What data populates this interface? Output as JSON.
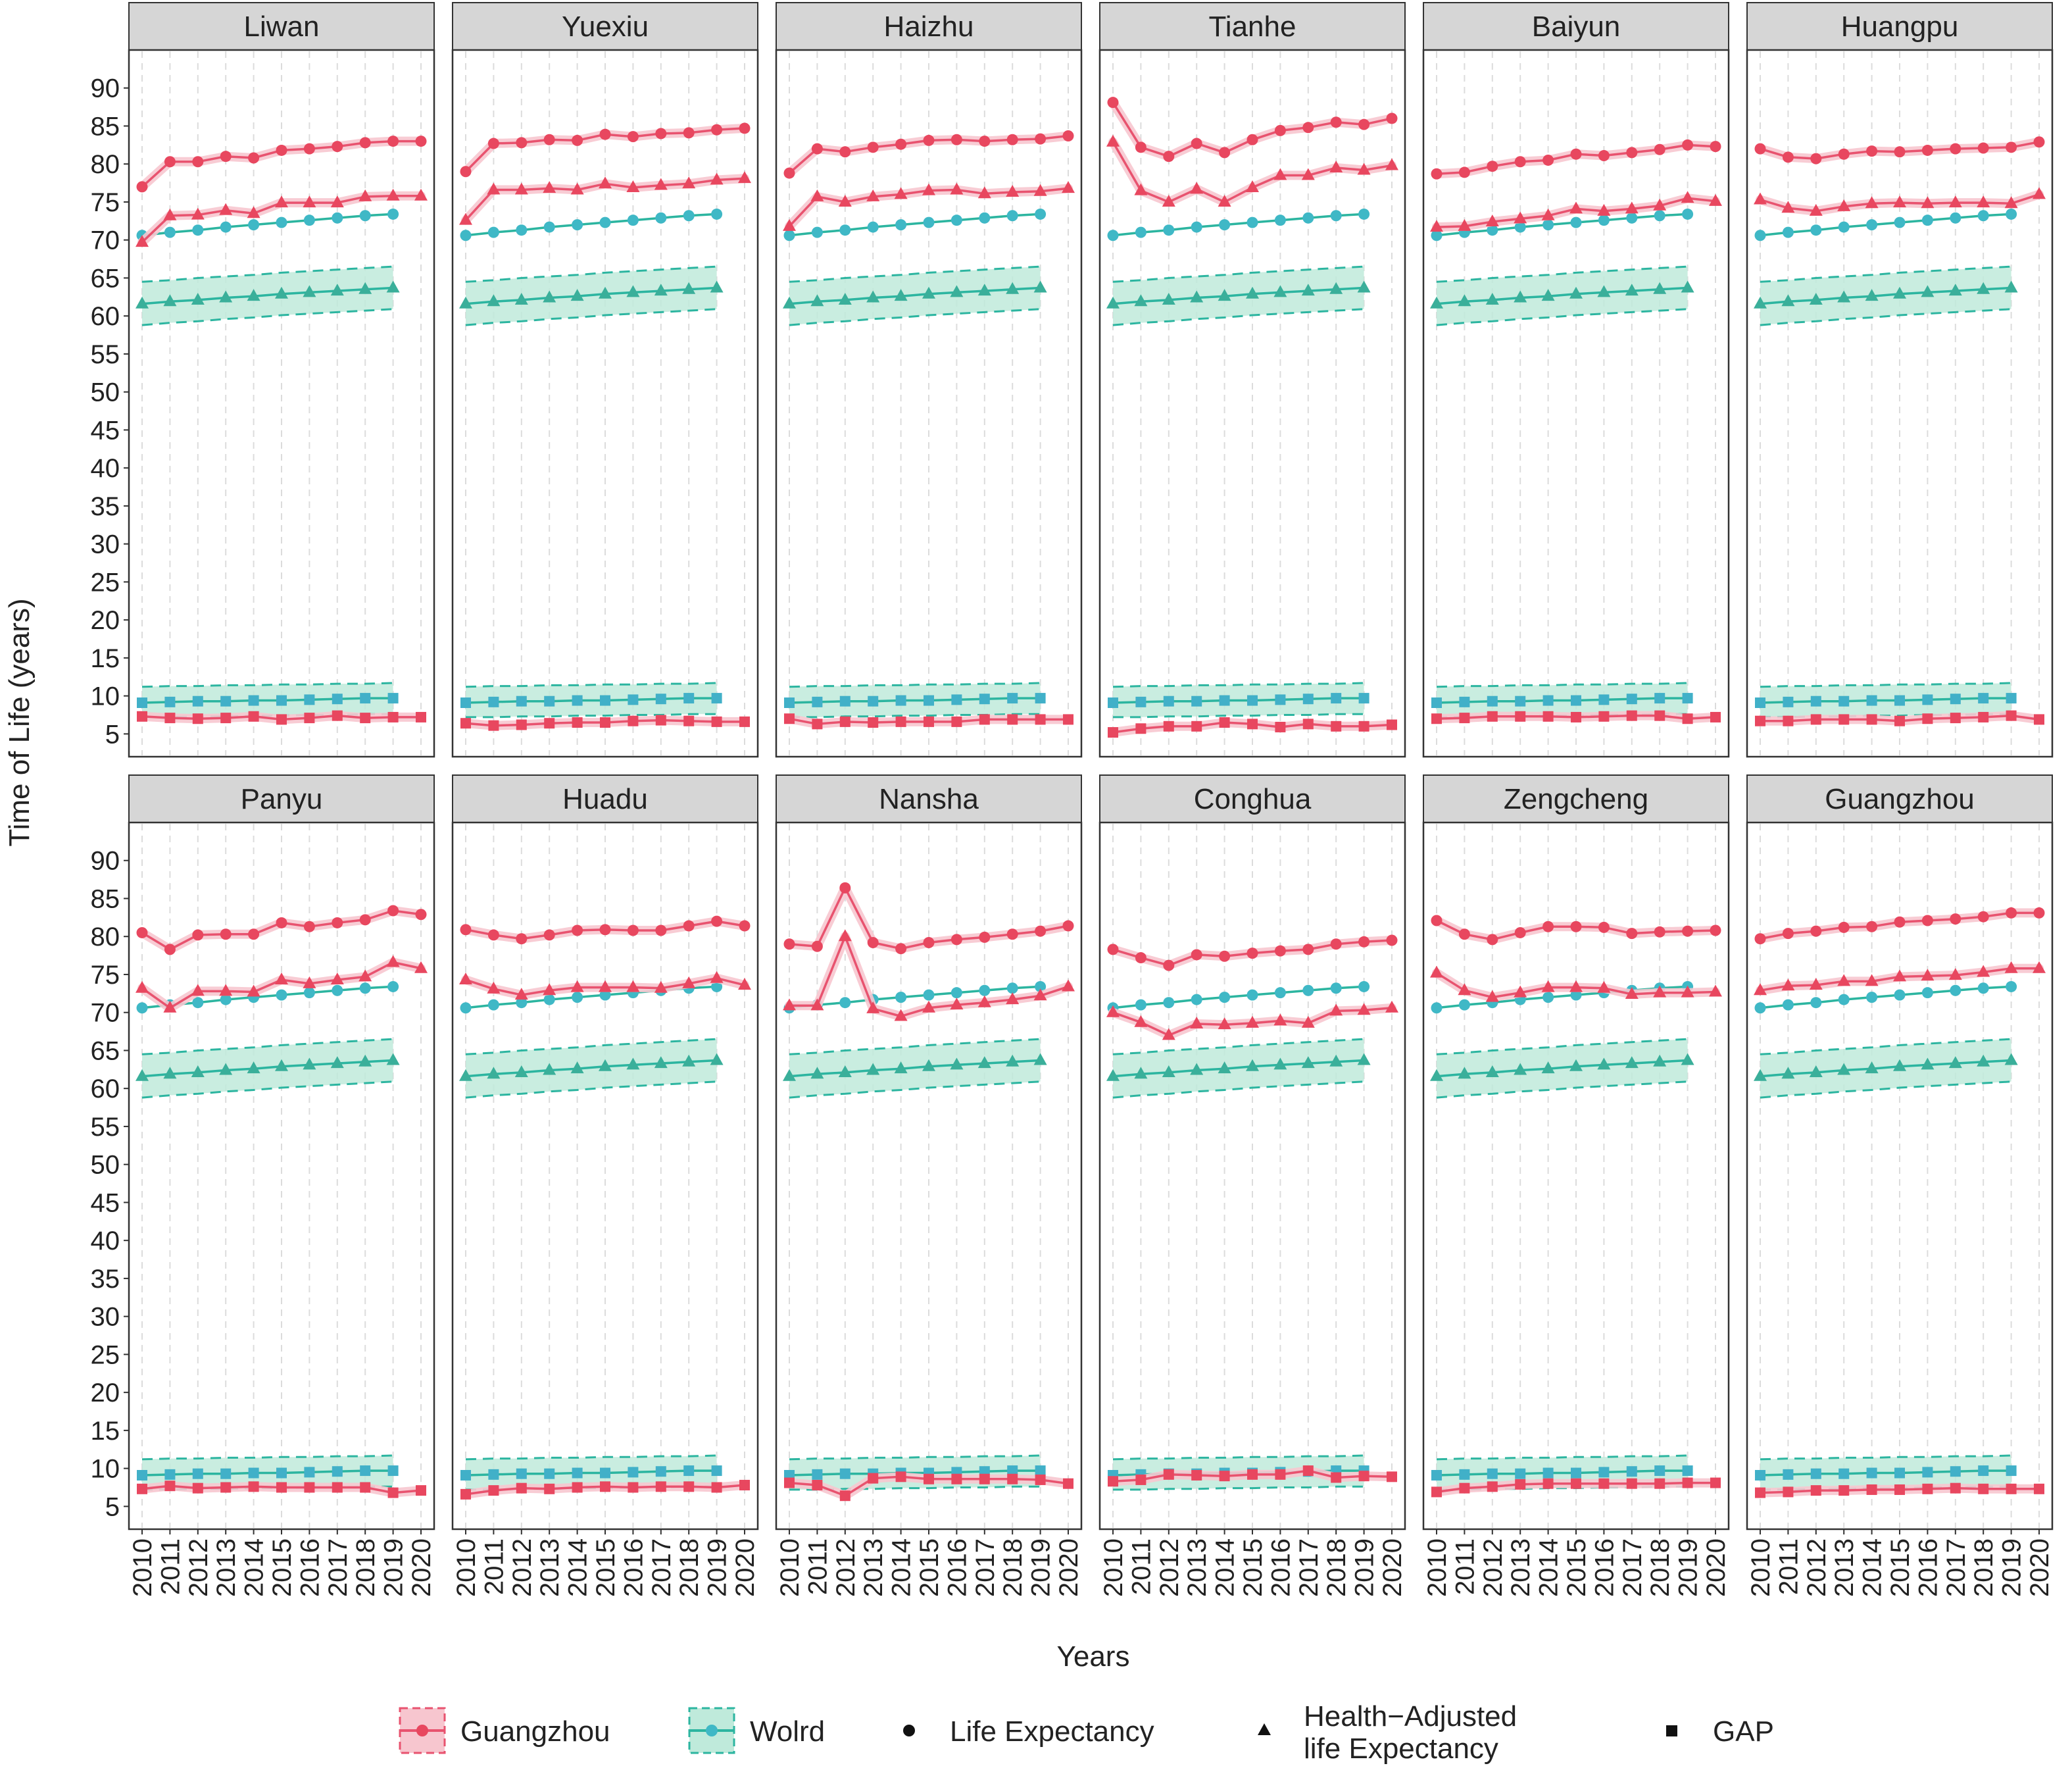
{
  "chart_data": {
    "type": "line",
    "title": "",
    "xlabel": "Years",
    "ylabel": "Time of Life (years)",
    "ylim": [
      2,
      95
    ],
    "yticks": [
      5,
      10,
      15,
      20,
      25,
      30,
      35,
      40,
      45,
      50,
      55,
      60,
      65,
      70,
      75,
      80,
      85,
      90
    ],
    "x": [
      2010,
      2011,
      2012,
      2013,
      2014,
      2015,
      2016,
      2017,
      2018,
      2019,
      2020
    ],
    "grid": true,
    "legend_position": "bottom",
    "legend": {
      "groups": [
        {
          "label": "Guangzhou",
          "color": "#e8536f"
        },
        {
          "label": "Wolrd",
          "color": "#2cb5a0"
        }
      ],
      "measures": [
        {
          "label": "Life Expectancy",
          "marker": "circle"
        },
        {
          "label": "Health−Adjusted life Expectancy",
          "lines": [
            "Health−Adjusted",
            "life Expectancy"
          ],
          "marker": "triangle"
        },
        {
          "label": "GAP",
          "marker": "square"
        }
      ]
    },
    "colors": {
      "guangzhou": "#e8536f",
      "guangzhou_marker": "#e8475f",
      "guangzhou_band": "#f7c6cf",
      "world": "#2cb5a0",
      "world_le_marker": "#3fb8c6",
      "world_hale_marker": "#3aaf9a",
      "world_gap_marker": "#41b0c8",
      "world_band": "#bfeadb"
    },
    "world": {
      "x": [
        2010,
        2011,
        2012,
        2013,
        2014,
        2015,
        2016,
        2017,
        2018,
        2019
      ],
      "life_expectancy": [
        70.6,
        71.0,
        71.3,
        71.7,
        72.0,
        72.3,
        72.6,
        72.9,
        73.2,
        73.4
      ],
      "hale": [
        61.6,
        61.9,
        62.1,
        62.4,
        62.6,
        62.9,
        63.1,
        63.3,
        63.5,
        63.7
      ],
      "hale_band": {
        "low": [
          58.8,
          59.1,
          59.3,
          59.6,
          59.8,
          60.1,
          60.3,
          60.5,
          60.7,
          60.9
        ],
        "high": [
          64.5,
          64.7,
          65.0,
          65.2,
          65.4,
          65.7,
          65.9,
          66.1,
          66.3,
          66.5
        ]
      },
      "gap": [
        9.1,
        9.2,
        9.3,
        9.3,
        9.4,
        9.4,
        9.5,
        9.6,
        9.7,
        9.7
      ],
      "gap_band": {
        "low": [
          7.2,
          7.2,
          7.3,
          7.3,
          7.4,
          7.4,
          7.5,
          7.5,
          7.6,
          7.6
        ],
        "high": [
          11.2,
          11.3,
          11.3,
          11.4,
          11.4,
          11.5,
          11.5,
          11.6,
          11.6,
          11.7
        ]
      }
    },
    "panels": [
      {
        "name": "Liwan",
        "series": [
          {
            "name": "Life Expectancy",
            "values": [
              77.0,
              80.3,
              80.3,
              81.0,
              80.8,
              81.8,
              82.0,
              82.3,
              82.8,
              83.0,
              83.0
            ]
          },
          {
            "name": "Health−Adjusted life Expectancy",
            "values": [
              69.7,
              73.2,
              73.3,
              73.9,
              73.5,
              74.9,
              74.9,
              74.9,
              75.7,
              75.8,
              75.8
            ]
          },
          {
            "name": "GAP",
            "values": [
              7.3,
              7.1,
              7.0,
              7.1,
              7.3,
              6.9,
              7.1,
              7.4,
              7.1,
              7.2,
              7.2
            ]
          }
        ]
      },
      {
        "name": "Yuexiu",
        "series": [
          {
            "name": "Life Expectancy",
            "values": [
              79.0,
              82.7,
              82.8,
              83.2,
              83.1,
              83.9,
              83.6,
              84.0,
              84.1,
              84.5,
              84.7
            ]
          },
          {
            "name": "Health−Adjusted life Expectancy",
            "values": [
              72.6,
              76.6,
              76.6,
              76.8,
              76.6,
              77.4,
              76.9,
              77.2,
              77.4,
              77.9,
              78.1
            ]
          },
          {
            "name": "GAP",
            "values": [
              6.4,
              6.1,
              6.2,
              6.4,
              6.5,
              6.5,
              6.7,
              6.8,
              6.7,
              6.6,
              6.6
            ]
          }
        ]
      },
      {
        "name": "Haizhu",
        "series": [
          {
            "name": "Life Expectancy",
            "values": [
              78.8,
              82.0,
              81.6,
              82.2,
              82.6,
              83.1,
              83.2,
              83.0,
              83.2,
              83.3,
              83.7
            ]
          },
          {
            "name": "Health−Adjusted life Expectancy",
            "values": [
              71.8,
              75.7,
              75.0,
              75.7,
              76.0,
              76.5,
              76.6,
              76.1,
              76.3,
              76.4,
              76.8
            ]
          },
          {
            "name": "GAP",
            "values": [
              7.0,
              6.3,
              6.6,
              6.5,
              6.6,
              6.6,
              6.6,
              6.9,
              6.9,
              6.9,
              6.9
            ]
          }
        ]
      },
      {
        "name": "Tianhe",
        "series": [
          {
            "name": "Life Expectancy",
            "values": [
              88.1,
              82.2,
              81.0,
              82.7,
              81.5,
              83.2,
              84.4,
              84.8,
              85.5,
              85.2,
              86.0
            ]
          },
          {
            "name": "Health−Adjusted life Expectancy",
            "values": [
              82.9,
              76.5,
              75.0,
              76.7,
              75.0,
              76.9,
              78.5,
              78.5,
              79.5,
              79.2,
              79.8
            ]
          },
          {
            "name": "GAP",
            "values": [
              5.2,
              5.7,
              6.0,
              6.0,
              6.5,
              6.3,
              5.9,
              6.3,
              6.0,
              6.0,
              6.2
            ]
          }
        ]
      },
      {
        "name": "Baiyun",
        "series": [
          {
            "name": "Life Expectancy",
            "values": [
              78.7,
              78.9,
              79.7,
              80.3,
              80.5,
              81.3,
              81.1,
              81.5,
              81.9,
              82.5,
              82.3
            ]
          },
          {
            "name": "Health−Adjusted life Expectancy",
            "values": [
              71.7,
              71.8,
              72.4,
              72.8,
              73.2,
              74.1,
              73.8,
              74.1,
              74.5,
              75.5,
              75.1
            ]
          },
          {
            "name": "GAP",
            "values": [
              7.0,
              7.1,
              7.3,
              7.3,
              7.3,
              7.2,
              7.3,
              7.4,
              7.4,
              7.0,
              7.2
            ]
          }
        ]
      },
      {
        "name": "Huangpu",
        "series": [
          {
            "name": "Life Expectancy",
            "values": [
              82.0,
              80.9,
              80.7,
              81.3,
              81.7,
              81.6,
              81.8,
              82.0,
              82.1,
              82.2,
              82.9
            ]
          },
          {
            "name": "Health−Adjusted life Expectancy",
            "values": [
              75.3,
              74.2,
              73.8,
              74.4,
              74.8,
              74.9,
              74.8,
              74.9,
              74.9,
              74.8,
              76.0
            ]
          },
          {
            "name": "GAP",
            "values": [
              6.7,
              6.7,
              6.9,
              6.9,
              6.9,
              6.7,
              7.0,
              7.1,
              7.2,
              7.4,
              6.9
            ]
          }
        ]
      },
      {
        "name": "Panyu",
        "series": [
          {
            "name": "Life Expectancy",
            "values": [
              80.5,
              78.3,
              80.2,
              80.3,
              80.3,
              81.8,
              81.3,
              81.8,
              82.2,
              83.4,
              82.9
            ]
          },
          {
            "name": "Health−Adjusted life Expectancy",
            "values": [
              73.2,
              70.6,
              72.8,
              72.8,
              72.7,
              74.3,
              73.8,
              74.3,
              74.7,
              76.6,
              75.8
            ]
          },
          {
            "name": "GAP",
            "values": [
              7.3,
              7.7,
              7.4,
              7.5,
              7.6,
              7.5,
              7.5,
              7.5,
              7.5,
              6.8,
              7.1
            ]
          }
        ]
      },
      {
        "name": "Huadu",
        "series": [
          {
            "name": "Life Expectancy",
            "values": [
              80.9,
              80.2,
              79.7,
              80.2,
              80.8,
              80.9,
              80.8,
              80.8,
              81.4,
              82.0,
              81.4
            ]
          },
          {
            "name": "Health−Adjusted life Expectancy",
            "values": [
              74.3,
              73.1,
              72.3,
              72.9,
              73.3,
              73.3,
              73.3,
              73.2,
              73.8,
              74.5,
              73.6
            ]
          },
          {
            "name": "GAP",
            "values": [
              6.6,
              7.1,
              7.4,
              7.3,
              7.5,
              7.6,
              7.5,
              7.6,
              7.6,
              7.5,
              7.8
            ]
          }
        ]
      },
      {
        "name": "Nansha",
        "series": [
          {
            "name": "Life Expectancy",
            "values": [
              79.0,
              78.7,
              86.4,
              79.2,
              78.4,
              79.2,
              79.6,
              79.9,
              80.3,
              80.7,
              81.4
            ]
          },
          {
            "name": "Health−Adjusted life Expectancy",
            "values": [
              70.9,
              70.9,
              80.0,
              70.5,
              69.5,
              70.6,
              71.0,
              71.3,
              71.7,
              72.2,
              73.4
            ]
          },
          {
            "name": "GAP",
            "values": [
              8.1,
              7.8,
              6.4,
              8.7,
              8.9,
              8.6,
              8.6,
              8.6,
              8.6,
              8.5,
              8.0
            ]
          }
        ]
      },
      {
        "name": "Conghua",
        "series": [
          {
            "name": "Life Expectancy",
            "values": [
              78.3,
              77.2,
              76.2,
              77.6,
              77.4,
              77.8,
              78.1,
              78.3,
              79.0,
              79.3,
              79.5
            ]
          },
          {
            "name": "Health−Adjusted life Expectancy",
            "values": [
              70.0,
              68.7,
              67.0,
              68.5,
              68.4,
              68.6,
              68.9,
              68.6,
              70.2,
              70.3,
              70.6
            ]
          },
          {
            "name": "GAP",
            "values": [
              8.3,
              8.5,
              9.2,
              9.1,
              9.0,
              9.2,
              9.2,
              9.7,
              8.8,
              9.0,
              8.9
            ]
          }
        ]
      },
      {
        "name": "Zengcheng",
        "series": [
          {
            "name": "Life Expectancy",
            "values": [
              82.1,
              80.3,
              79.6,
              80.5,
              81.3,
              81.3,
              81.2,
              80.4,
              80.6,
              80.7,
              80.8
            ]
          },
          {
            "name": "Health−Adjusted life Expectancy",
            "values": [
              75.2,
              72.9,
              72.0,
              72.6,
              73.3,
              73.3,
              73.2,
              72.4,
              72.6,
              72.6,
              72.7
            ]
          },
          {
            "name": "GAP",
            "values": [
              6.9,
              7.4,
              7.6,
              7.9,
              8.0,
              8.0,
              8.0,
              8.0,
              8.0,
              8.1,
              8.1
            ]
          }
        ]
      },
      {
        "name": "Guangzhou",
        "series": [
          {
            "name": "Life Expectancy",
            "values": [
              79.7,
              80.4,
              80.7,
              81.2,
              81.3,
              81.9,
              82.1,
              82.3,
              82.6,
              83.1,
              83.1
            ]
          },
          {
            "name": "Health−Adjusted life Expectancy",
            "values": [
              72.9,
              73.5,
              73.6,
              74.1,
              74.1,
              74.7,
              74.8,
              74.9,
              75.3,
              75.8,
              75.8
            ]
          },
          {
            "name": "GAP",
            "values": [
              6.8,
              6.9,
              7.1,
              7.1,
              7.2,
              7.2,
              7.3,
              7.4,
              7.3,
              7.3,
              7.3
            ]
          }
        ]
      }
    ]
  }
}
